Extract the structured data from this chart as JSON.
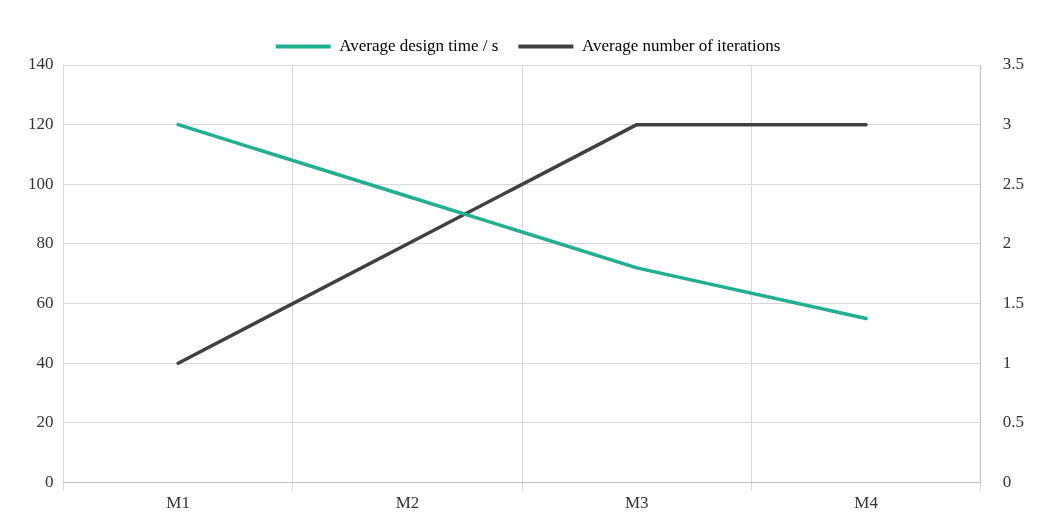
{
  "chart_data": {
    "type": "line",
    "categories": [
      "M1",
      "M2",
      "M3",
      "M4"
    ],
    "series": [
      {
        "name": "Average design time / s",
        "color": "#1fb08f",
        "values": [
          120,
          96,
          72,
          55
        ]
      },
      {
        "name": "Average number of iterations",
        "color": "#404040",
        "values": [
          1,
          2,
          3,
          3
        ],
        "axis": "y2"
      }
    ],
    "ylim": [
      0,
      140
    ],
    "yticks": [
      0,
      20,
      40,
      60,
      80,
      100,
      120,
      140
    ],
    "y2lim": [
      0,
      3.5
    ],
    "y2ticks": [
      0,
      0.5,
      1,
      1.5,
      2,
      2.5,
      3,
      3.5
    ],
    "grid": true,
    "legend": "top",
    "marker": "none",
    "line_style": "solid"
  }
}
